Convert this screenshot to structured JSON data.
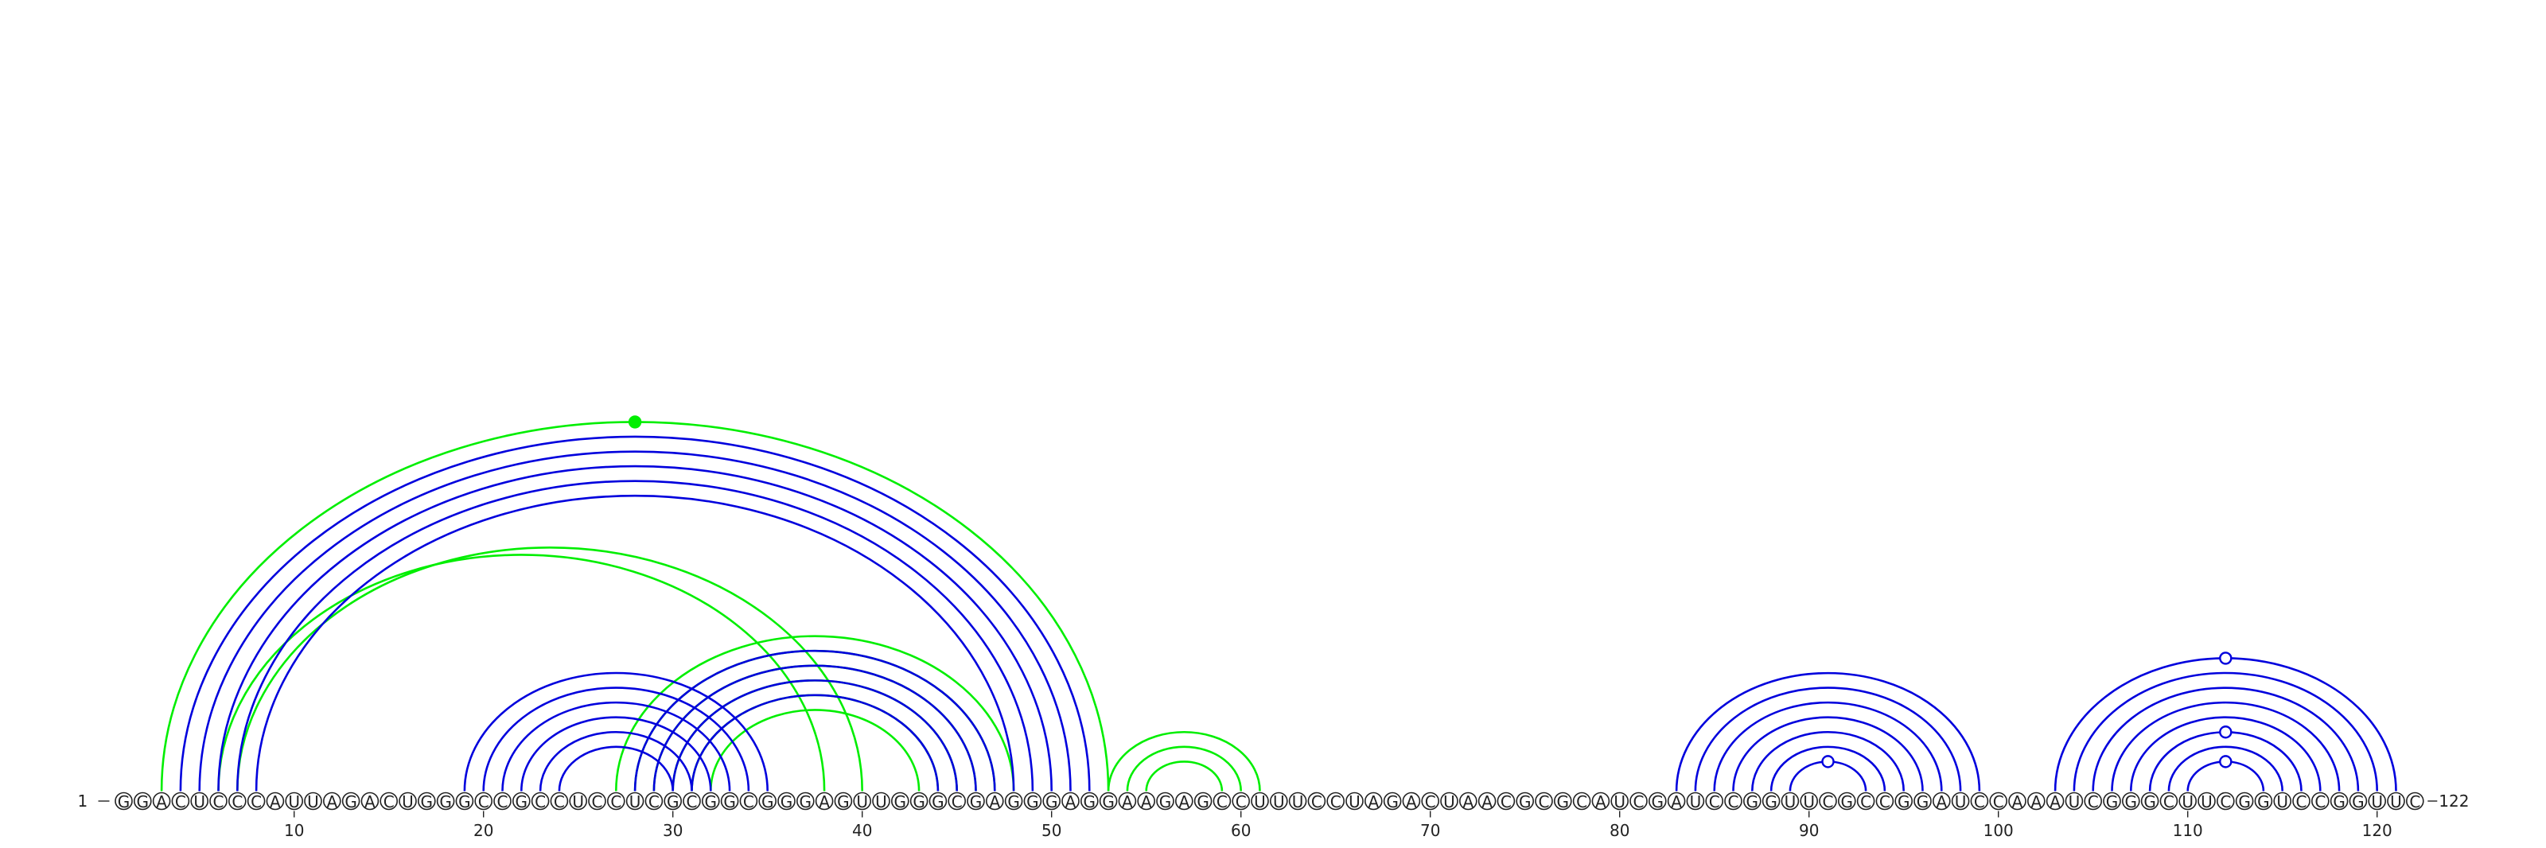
{
  "colors": {
    "paired": "#0000dd",
    "alternate": "#00ee00",
    "background": "#ffffff",
    "text": "#222222"
  },
  "sequence": {
    "start_label": "1",
    "end_label": "122",
    "bases": "GGACUCCCAUUAGACUGGGCCGCCUCCUCGCGGCGGGAGUUGGGCGAGGGAGGAAGAGCCUUUCCUAGACUAACGCGCAUCGAUCCGGUUCGCCGGAUCCAAAUCGGGCUUCGGUCCGGUUC"
  },
  "ticks": [
    {
      "pos": 10,
      "label": "10"
    },
    {
      "pos": 20,
      "label": "20"
    },
    {
      "pos": 30,
      "label": "30"
    },
    {
      "pos": 40,
      "label": "40"
    },
    {
      "pos": 50,
      "label": "50"
    },
    {
      "pos": 60,
      "label": "60"
    },
    {
      "pos": 70,
      "label": "70"
    },
    {
      "pos": 80,
      "label": "80"
    },
    {
      "pos": 90,
      "label": "90"
    },
    {
      "pos": 100,
      "label": "100"
    },
    {
      "pos": 110,
      "label": "110"
    },
    {
      "pos": 120,
      "label": "120"
    }
  ],
  "chart_data": {
    "type": "arc",
    "blue_pairs": [
      [
        4,
        52
      ],
      [
        5,
        51
      ],
      [
        6,
        50
      ],
      [
        7,
        49
      ],
      [
        8,
        48
      ],
      [
        19,
        35
      ],
      [
        20,
        34
      ],
      [
        21,
        33
      ],
      [
        22,
        32
      ],
      [
        23,
        31
      ],
      [
        24,
        30
      ],
      [
        28,
        47
      ],
      [
        29,
        46
      ],
      [
        30,
        45
      ],
      [
        31,
        44
      ],
      [
        83,
        99
      ],
      [
        84,
        98
      ],
      [
        85,
        97
      ],
      [
        86,
        96
      ],
      [
        87,
        95
      ],
      [
        88,
        94
      ],
      [
        89,
        93
      ],
      [
        103,
        121
      ],
      [
        104,
        120
      ],
      [
        105,
        119
      ],
      [
        106,
        118
      ],
      [
        107,
        117
      ],
      [
        108,
        116
      ],
      [
        109,
        115
      ],
      [
        110,
        114
      ]
    ],
    "green_pairs": [
      [
        3,
        53
      ],
      [
        6,
        38
      ],
      [
        7,
        40
      ],
      [
        27,
        48
      ],
      [
        28,
        47
      ],
      [
        29,
        46
      ],
      [
        30,
        45
      ],
      [
        31,
        44
      ],
      [
        32,
        43
      ],
      [
        53,
        61
      ],
      [
        54,
        60
      ],
      [
        55,
        59
      ]
    ],
    "pair_markers": [
      {
        "i": 3,
        "j": 53,
        "color": "green",
        "filled": true
      },
      {
        "i": 89,
        "j": 93,
        "color": "blue",
        "filled": false
      },
      {
        "i": 103,
        "j": 121,
        "color": "blue",
        "filled": false
      },
      {
        "i": 108,
        "j": 116,
        "color": "blue",
        "filled": false
      },
      {
        "i": 110,
        "j": 114,
        "color": "blue",
        "filled": false
      }
    ]
  }
}
